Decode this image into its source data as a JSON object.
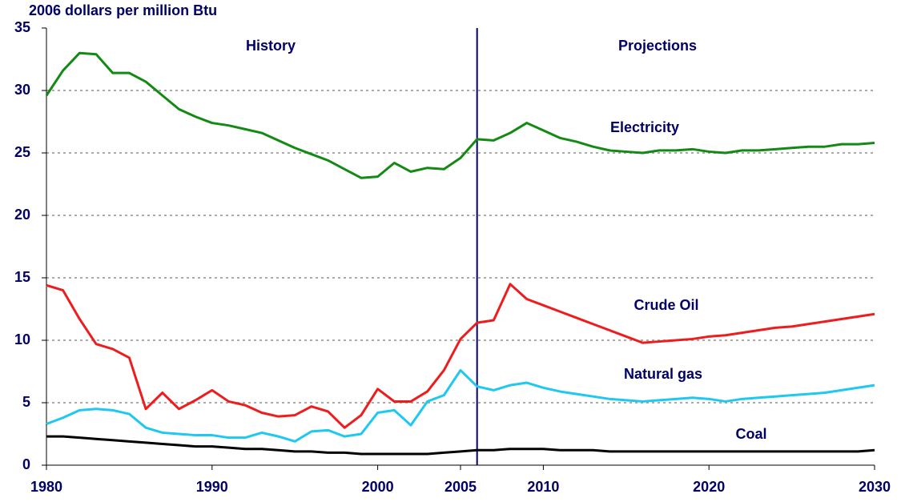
{
  "chart_data": {
    "type": "line",
    "y_label": "2006 dollars per million Btu",
    "annotations": [
      "History",
      "Projections"
    ],
    "divider_x": 2006,
    "x": [
      1980,
      1981,
      1982,
      1983,
      1984,
      1985,
      1986,
      1987,
      1988,
      1989,
      1990,
      1991,
      1992,
      1993,
      1994,
      1995,
      1996,
      1997,
      1998,
      1999,
      2000,
      2001,
      2002,
      2003,
      2004,
      2005,
      2006,
      2007,
      2008,
      2009,
      2010,
      2011,
      2012,
      2013,
      2014,
      2015,
      2016,
      2017,
      2018,
      2019,
      2020,
      2021,
      2022,
      2023,
      2024,
      2025,
      2026,
      2027,
      2028,
      2029,
      2030
    ],
    "series": [
      {
        "name": "Electricity",
        "color": "#138a13",
        "values": [
          29.6,
          31.6,
          33.0,
          32.9,
          31.4,
          31.4,
          30.7,
          29.6,
          28.5,
          27.9,
          27.4,
          27.2,
          26.9,
          26.6,
          26.0,
          25.4,
          24.9,
          24.4,
          23.7,
          23.0,
          23.1,
          24.2,
          23.5,
          23.8,
          23.7,
          24.6,
          26.1,
          26.0,
          26.6,
          27.4,
          26.8,
          26.2,
          25.9,
          25.5,
          25.2,
          25.1,
          25.0,
          25.2,
          25.2,
          25.3,
          25.1,
          25.0,
          25.2,
          25.2,
          25.3,
          25.4,
          25.5,
          25.5,
          25.7,
          25.7,
          25.8
        ]
      },
      {
        "name": "Crude Oil",
        "color": "#ee1c1c",
        "values": [
          14.4,
          14.0,
          11.7,
          9.7,
          9.3,
          8.6,
          4.5,
          5.8,
          4.5,
          5.2,
          6.0,
          5.1,
          4.8,
          4.2,
          3.9,
          4.0,
          4.7,
          4.3,
          3.0,
          4.0,
          6.1,
          5.1,
          5.1,
          5.9,
          7.6,
          10.1,
          11.4,
          11.6,
          14.5,
          13.3,
          12.8,
          12.3,
          11.8,
          11.3,
          10.8,
          10.3,
          9.8,
          9.9,
          10.0,
          10.1,
          10.3,
          10.4,
          10.6,
          10.8,
          11.0,
          11.1,
          11.3,
          11.5,
          11.7,
          11.9,
          12.1
        ]
      },
      {
        "name": "Natural gas",
        "color": "#1ec8f0",
        "values": [
          3.3,
          3.8,
          4.4,
          4.5,
          4.4,
          4.1,
          3.0,
          2.6,
          2.5,
          2.4,
          2.4,
          2.2,
          2.2,
          2.6,
          2.3,
          1.9,
          2.7,
          2.8,
          2.3,
          2.5,
          4.2,
          4.4,
          3.2,
          5.1,
          5.6,
          7.6,
          6.3,
          6.0,
          6.4,
          6.6,
          6.2,
          5.9,
          5.7,
          5.5,
          5.3,
          5.2,
          5.1,
          5.2,
          5.3,
          5.4,
          5.3,
          5.1,
          5.3,
          5.4,
          5.5,
          5.6,
          5.7,
          5.8,
          6.0,
          6.2,
          6.4
        ]
      },
      {
        "name": "Coal",
        "color": "#000000",
        "values": [
          2.3,
          2.3,
          2.2,
          2.1,
          2.0,
          1.9,
          1.8,
          1.7,
          1.6,
          1.5,
          1.5,
          1.4,
          1.3,
          1.3,
          1.2,
          1.1,
          1.1,
          1.0,
          1.0,
          0.9,
          0.9,
          0.9,
          0.9,
          0.9,
          1.0,
          1.1,
          1.2,
          1.2,
          1.3,
          1.3,
          1.3,
          1.2,
          1.2,
          1.2,
          1.1,
          1.1,
          1.1,
          1.1,
          1.1,
          1.1,
          1.1,
          1.1,
          1.1,
          1.1,
          1.1,
          1.1,
          1.1,
          1.1,
          1.1,
          1.1,
          1.2
        ]
      }
    ],
    "xlim": [
      1980,
      2030
    ],
    "xticks": [
      1980,
      1990,
      2000,
      2005,
      2010,
      2020,
      2030
    ],
    "ylim": [
      0,
      35
    ],
    "yticks": [
      0,
      5,
      10,
      15,
      20,
      25,
      30,
      35
    ],
    "grid": true
  }
}
